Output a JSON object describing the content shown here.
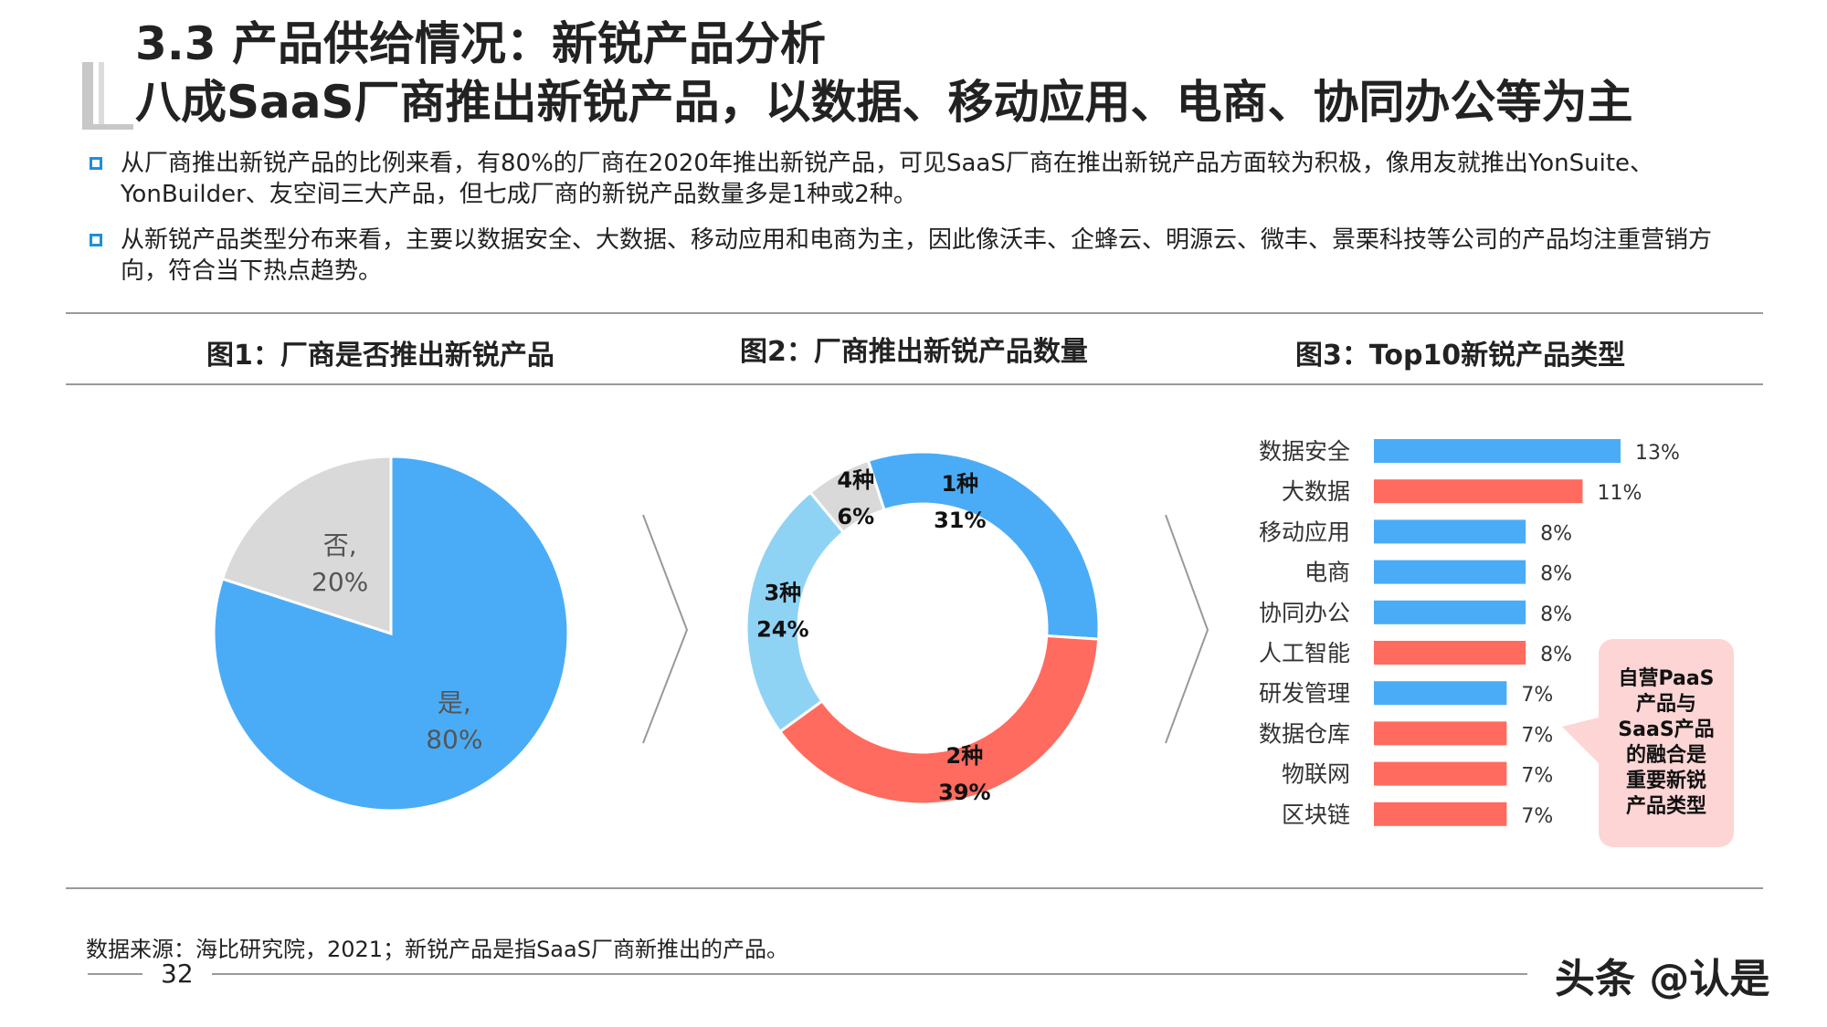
{
  "header": {
    "title1": "3.3 产品供给情况：新锐产品分析",
    "title2": "八成SaaS厂商推出新锐产品，以数据、移动应用、电商、协同办公等为主"
  },
  "bullets": [
    "从厂商推出新锐产品的比例来看，有80%的厂商在2020年推出新锐产品，可见SaaS厂商在推出新锐产品方面较为积极，像用友就推出YonSuite、YonBuilder、友空间三大产品，但七成厂商的新锐产品数量多是1种或2种。",
    "从新锐产品类型分布来看，主要以数据安全、大数据、移动应用和电商为主，因此像沃丰、企蜂云、明源云、微丰、景栗科技等公司的产品均注重营销方向，符合当下热点趋势。"
  ],
  "chart_data": [
    {
      "type": "pie",
      "title": "图1：厂商是否推出新锐产品",
      "slices": [
        {
          "name": "是,",
          "label": "80%",
          "value": 80,
          "color": "#4aacf7"
        },
        {
          "name": "否,",
          "label": "20%",
          "value": 20,
          "color": "#d9d9d9"
        }
      ]
    },
    {
      "type": "pie",
      "title": "图2：厂商推出新锐产品数量",
      "slices": [
        {
          "name": "1种",
          "label": "31%",
          "value": 31,
          "color": "#4aacf7"
        },
        {
          "name": "2种",
          "label": "39%",
          "value": 39,
          "color": "#ff6b5e"
        },
        {
          "name": "3种",
          "label": "24%",
          "value": 24,
          "color": "#8fd3f4"
        },
        {
          "name": "4种",
          "label": "6%",
          "value": 6,
          "color": "#d9d9d9"
        }
      ]
    },
    {
      "type": "bar",
      "title": "图3：Top10新锐产品类型",
      "categories": [
        "数据安全",
        "大数据",
        "移动应用",
        "电商",
        "协同办公",
        "人工智能",
        "研发管理",
        "数据仓库",
        "物联网",
        "区块链"
      ],
      "values": [
        13,
        11,
        8,
        8,
        8,
        8,
        7,
        7,
        7,
        7
      ],
      "labels": [
        "13%",
        "11%",
        "8%",
        "8%",
        "8%",
        "8%",
        "7%",
        "7%",
        "7%",
        "7%"
      ],
      "colors": [
        "#4aacf7",
        "#ff6b5e",
        "#4aacf7",
        "#4aacf7",
        "#4aacf7",
        "#ff6b5e",
        "#4aacf7",
        "#ff6b5e",
        "#ff6b5e",
        "#ff6b5e"
      ],
      "xlim": [
        0,
        13
      ],
      "annotation": "自营PaaS产品与SaaS产品的融合是重要新锐产品类型"
    }
  ],
  "footer": {
    "source": "数据来源：海比研究院，2021；新锐产品是指SaaS厂商新推出的产品。",
    "page": "32",
    "watermark": "头条 @认是"
  },
  "colors": {
    "blue": "#4aacf7",
    "red": "#ff6b5e",
    "lightblue": "#8fd3f4",
    "gray": "#d9d9d9",
    "callout": "#fdd5d5"
  }
}
